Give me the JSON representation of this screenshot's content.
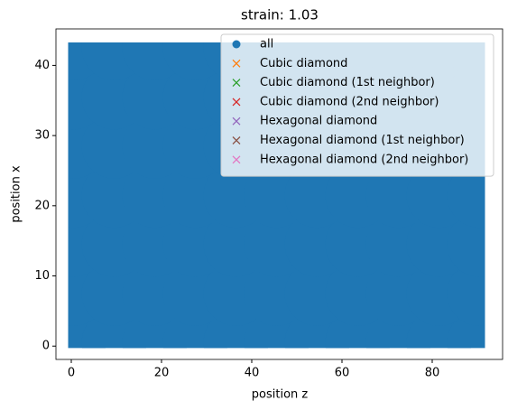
{
  "chart_data": {
    "type": "scatter",
    "title": "strain: 1.03",
    "x_label": "position z",
    "y_label": "position x",
    "xlim": [
      -3.4,
      95.6
    ],
    "ylim": [
      -1.9,
      45.2
    ],
    "xticks": [
      0,
      20,
      40,
      60,
      80
    ],
    "yticks": [
      0,
      10,
      20,
      30,
      40
    ],
    "legend": "upper right",
    "series": [
      {
        "name": "all",
        "color": "#1f77b4",
        "marker": "o",
        "x": [
          0.5,
          9.5,
          18.5,
          27.5,
          36.5,
          45.5,
          54.5,
          63.5,
          72.5,
          81.5,
          90.5,
          0.5,
          9.5,
          18.5,
          27.5,
          36.5,
          45.5,
          54.5,
          63.5,
          72.5,
          81.5,
          90.5,
          0.5,
          9.5,
          18.5,
          27.5,
          36.5,
          45.5,
          54.5,
          63.5,
          72.5,
          81.5,
          90.5,
          0.5,
          9.5,
          18.5,
          27.5,
          36.5,
          45.5,
          54.5,
          63.5,
          72.5,
          81.5,
          90.5,
          0.5,
          9.5,
          18.5,
          27.5,
          36.5,
          45.5,
          54.5,
          63.5,
          72.5,
          81.5,
          90.5,
          0.5,
          9.5,
          18.5,
          27.5,
          36.5,
          45.5,
          54.5,
          63.5,
          72.5,
          81.5,
          90.5,
          0.5,
          9.5,
          18.5,
          27.5,
          36.5,
          45.5,
          54.5,
          63.5,
          72.5,
          81.5,
          90.5
        ],
        "y": [
          0.5,
          0.5,
          0.5,
          0.5,
          0.5,
          0.5,
          0.5,
          0.5,
          0.5,
          0.5,
          0.5,
          7.5,
          7.5,
          7.5,
          7.5,
          7.5,
          7.5,
          7.5,
          7.5,
          7.5,
          7.5,
          7.5,
          14.5,
          14.5,
          14.5,
          14.5,
          14.5,
          14.5,
          14.5,
          14.5,
          14.5,
          14.5,
          14.5,
          21.5,
          21.5,
          21.5,
          21.5,
          21.5,
          21.5,
          21.5,
          21.5,
          21.5,
          21.5,
          21.5,
          28.5,
          28.5,
          28.5,
          28.5,
          28.5,
          28.5,
          28.5,
          28.5,
          28.5,
          28.5,
          28.5,
          35.5,
          35.5,
          35.5,
          35.5,
          35.5,
          35.5,
          35.5,
          35.5,
          35.5,
          35.5,
          35.5,
          42.5,
          42.5,
          42.5,
          42.5,
          42.5,
          42.5,
          42.5,
          42.5,
          42.5,
          42.5,
          42.5
        ]
      },
      {
        "name": "Cubic diamond",
        "color": "#ff7f0e",
        "marker": "x",
        "x": [],
        "y": []
      },
      {
        "name": "Cubic diamond (1st neighbor)",
        "color": "#2ca02c",
        "marker": "x",
        "x": [],
        "y": []
      },
      {
        "name": "Cubic diamond (2nd neighbor)",
        "color": "#d62728",
        "marker": "x",
        "x": [],
        "y": []
      },
      {
        "name": "Hexagonal diamond",
        "color": "#9467bd",
        "marker": "x",
        "x": [],
        "y": []
      },
      {
        "name": "Hexagonal diamond (1st neighbor)",
        "color": "#8c564b",
        "marker": "x",
        "x": [],
        "y": []
      },
      {
        "name": "Hexagonal diamond (2nd neighbor)",
        "color": "#e377c2",
        "marker": "x",
        "x": [],
        "y": []
      }
    ]
  }
}
